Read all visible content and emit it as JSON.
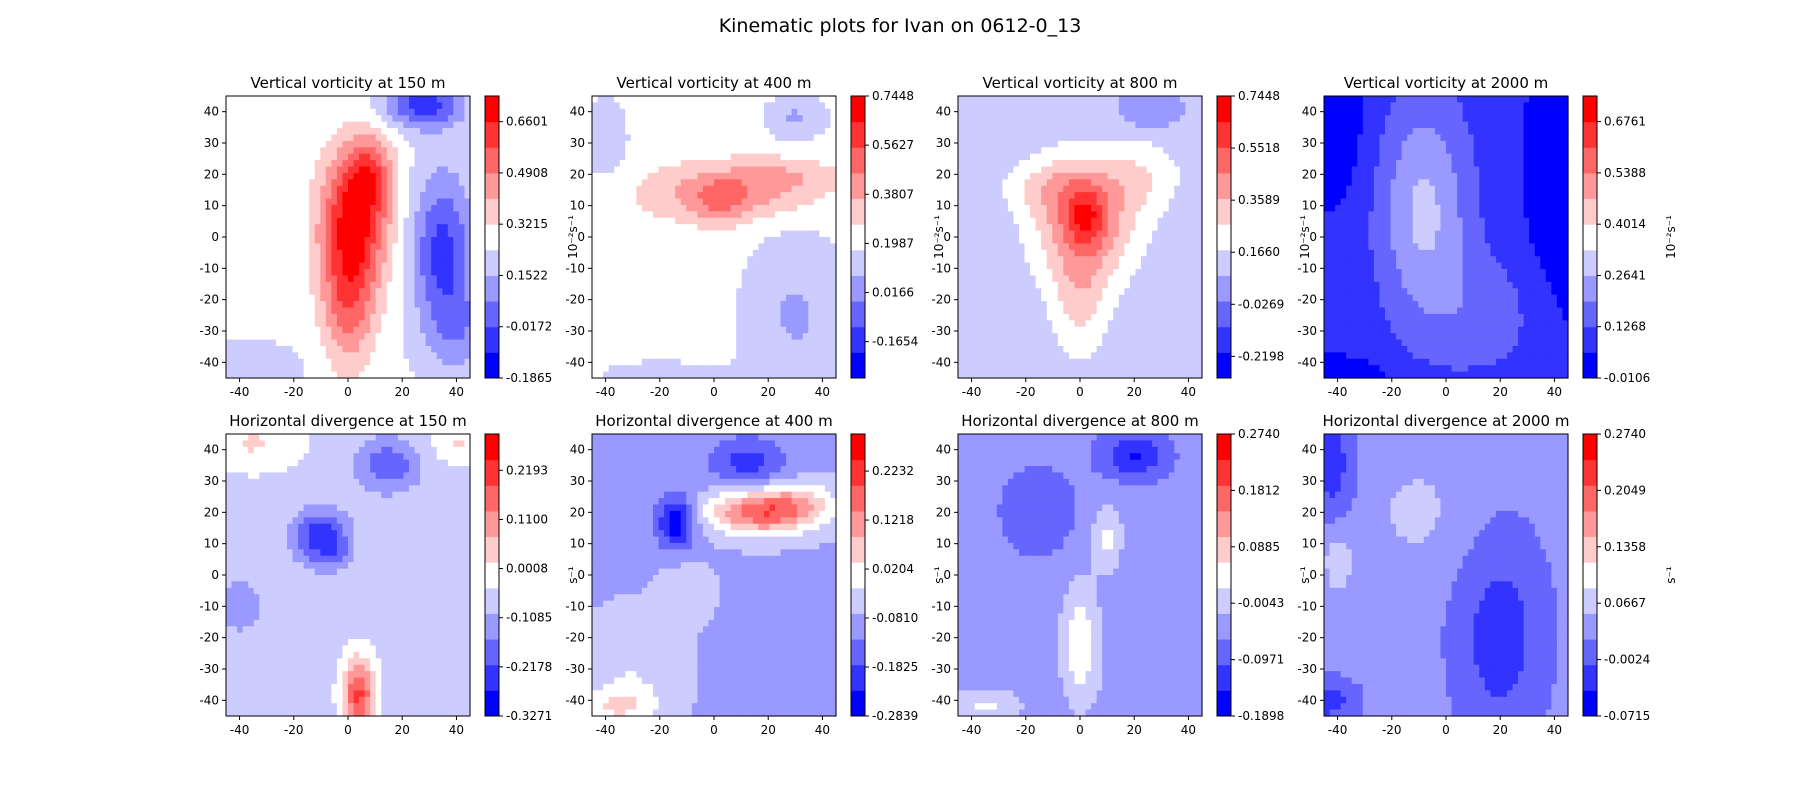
{
  "suptitle": "Kinematic plots for Ivan on 0612-0_13",
  "colors": {
    "blue_dark": "#0000ff",
    "blue_1": "#3333ff",
    "blue_2": "#6666ff",
    "blue_3": "#9999ff",
    "blue_4": "#ccccff",
    "white": "#ffffff",
    "red_4": "#ffcccc",
    "red_3": "#ff9999",
    "red_2": "#ff6666",
    "red_1": "#ff3333",
    "red_dark": "#ff0000"
  },
  "chart_data": [
    {
      "type": "heatmap",
      "row": 0,
      "col": 0,
      "title": "Vertical vorticity at 150 m",
      "xlim": [
        -45,
        45
      ],
      "ylim": [
        -45,
        45
      ],
      "xticks": [
        "-40",
        "-20",
        "0",
        "20",
        "40"
      ],
      "yticks": [
        "40",
        "30",
        "20",
        "10",
        "0",
        "-10",
        "-20",
        "-30",
        "-40"
      ],
      "colorbar": {
        "label": "10⁻²s⁻¹",
        "range": [
          -0.1865,
          0.7448
        ],
        "ticks": [
          -0.1865,
          -0.0172,
          0.1522,
          0.3215,
          0.4908,
          0.6601
        ],
        "tick_labels": [
          "-0.1865",
          "-0.0172",
          "0.1522",
          "0.3215",
          "0.4908",
          "0.6601"
        ]
      },
      "field": {
        "base": 0.25,
        "blobs": [
          {
            "x": 2,
            "y": 5,
            "sx": 9,
            "sy": 16,
            "a": 0.42
          },
          {
            "x": 0,
            "y": -22,
            "sx": 7,
            "sy": 15,
            "a": 0.24
          },
          {
            "x": 8,
            "y": 20,
            "sx": 6,
            "sy": 9,
            "a": 0.22
          },
          {
            "x": 28,
            "y": 42,
            "sx": 10,
            "sy": 5,
            "a": -0.32
          },
          {
            "x": 35,
            "y": -5,
            "sx": 8,
            "sy": 18,
            "a": -0.3
          },
          {
            "x": 42,
            "y": -30,
            "sx": 8,
            "sy": 10,
            "a": -0.12
          },
          {
            "x": -40,
            "y": -42,
            "sx": 14,
            "sy": 5,
            "a": -0.08
          }
        ]
      }
    },
    {
      "type": "heatmap",
      "row": 0,
      "col": 1,
      "title": "Vertical vorticity at 400 m",
      "xlim": [
        -45,
        45
      ],
      "ylim": [
        -45,
        45
      ],
      "xticks": [
        "-40",
        "-20",
        "0",
        "20",
        "40"
      ],
      "yticks": [
        "40",
        "30",
        "20",
        "10",
        "0",
        "-10",
        "-20",
        "-30",
        "-40"
      ],
      "colorbar": {
        "label": "10⁻²s⁻¹",
        "range": [
          -0.3,
          0.7448
        ],
        "ticks": [
          -0.1654,
          0.0166,
          0.1987,
          0.3807,
          0.5627,
          0.7448
        ],
        "tick_labels": [
          "-0.1654",
          "0.0166",
          "0.1987",
          "0.3807",
          "0.5627",
          "0.7448"
        ]
      },
      "field": {
        "base": 0.22,
        "blobs": [
          {
            "x": 5,
            "y": 14,
            "sx": 22,
            "sy": 6,
            "a": 0.22
          },
          {
            "x": 2,
            "y": 10,
            "sx": 6,
            "sy": 5,
            "a": 0.12
          },
          {
            "x": 25,
            "y": 20,
            "sx": 14,
            "sy": 4,
            "a": 0.1
          },
          {
            "x": 30,
            "y": -25,
            "sx": 14,
            "sy": 20,
            "a": -0.15
          },
          {
            "x": -40,
            "y": 30,
            "sx": 8,
            "sy": 14,
            "a": -0.08
          },
          {
            "x": 30,
            "y": 38,
            "sx": 8,
            "sy": 5,
            "a": -0.15
          },
          {
            "x": -20,
            "y": -44,
            "sx": 20,
            "sy": 4,
            "a": -0.08
          }
        ]
      }
    },
    {
      "type": "heatmap",
      "row": 0,
      "col": 2,
      "title": "Vertical vorticity at 800 m",
      "xlim": [
        -45,
        45
      ],
      "ylim": [
        -45,
        45
      ],
      "xticks": [
        "-40",
        "-20",
        "0",
        "20",
        "40"
      ],
      "yticks": [
        "40",
        "30",
        "20",
        "10",
        "0",
        "-10",
        "-20",
        "-30",
        "-40"
      ],
      "colorbar": {
        "label": "10⁻²s⁻¹",
        "range": [
          -0.3,
          0.7448
        ],
        "ticks": [
          -0.2198,
          -0.0269,
          0.166,
          0.3589,
          0.5518,
          0.7448
        ],
        "tick_labels": [
          "-0.2198",
          "-0.0269",
          "0.1660",
          "0.3589",
          "0.5518",
          "0.7448"
        ]
      },
      "field": {
        "base": 0.1,
        "blobs": [
          {
            "x": 2,
            "y": 6,
            "sx": 14,
            "sy": 14,
            "a": 0.35
          },
          {
            "x": 2,
            "y": 6,
            "sx": 5,
            "sy": 6,
            "a": 0.2
          },
          {
            "x": -10,
            "y": 16,
            "sx": 14,
            "sy": 6,
            "a": 0.12
          },
          {
            "x": 0,
            "y": -20,
            "sx": 8,
            "sy": 14,
            "a": 0.18
          },
          {
            "x": 25,
            "y": 20,
            "sx": 10,
            "sy": 8,
            "a": 0.12
          },
          {
            "x": 25,
            "y": 40,
            "sx": 8,
            "sy": 4,
            "a": -0.1
          }
        ]
      }
    },
    {
      "type": "heatmap",
      "row": 0,
      "col": 3,
      "title": "Vertical vorticity at 2000 m",
      "xlim": [
        -45,
        45
      ],
      "ylim": [
        -45,
        45
      ],
      "xticks": [
        "-40",
        "-20",
        "0",
        "20",
        "40"
      ],
      "yticks": [
        "40",
        "30",
        "20",
        "10",
        "0",
        "-10",
        "-20",
        "-30",
        "-40"
      ],
      "colorbar": {
        "label": "10⁻²s⁻¹",
        "range": [
          -0.0106,
          0.7448
        ],
        "ticks": [
          -0.0106,
          0.1268,
          0.2641,
          0.4014,
          0.5388,
          0.6761
        ],
        "tick_labels": [
          "-0.0106",
          "0.1268",
          "0.2641",
          "0.4014",
          "0.5388",
          "0.6761"
        ]
      },
      "field": {
        "base": 0.08,
        "blobs": [
          {
            "x": -8,
            "y": 8,
            "sx": 12,
            "sy": 26,
            "a": 0.2
          },
          {
            "x": 15,
            "y": -25,
            "sx": 14,
            "sy": 14,
            "a": 0.08
          },
          {
            "x": -45,
            "y": 35,
            "sx": 10,
            "sy": 16,
            "a": -0.1
          },
          {
            "x": 45,
            "y": 20,
            "sx": 10,
            "sy": 30,
            "a": -0.1
          },
          {
            "x": -40,
            "y": -44,
            "sx": 14,
            "sy": 4,
            "a": -0.08
          }
        ]
      }
    },
    {
      "type": "heatmap",
      "row": 1,
      "col": 0,
      "title": "Horizontal divergence at 150 m",
      "xlim": [
        -45,
        45
      ],
      "ylim": [
        -45,
        45
      ],
      "xticks": [
        "-40",
        "-20",
        "0",
        "20",
        "40"
      ],
      "yticks": [
        "40",
        "30",
        "20",
        "10",
        "0",
        "-10",
        "-20",
        "-30",
        "-40"
      ],
      "colorbar": {
        "label": "s⁻¹",
        "range": [
          -0.3271,
          0.3
        ],
        "ticks": [
          -0.3271,
          -0.2178,
          -0.1085,
          0.0008,
          0.11,
          0.2193
        ],
        "tick_labels": [
          "-0.3271",
          "-0.2178",
          "-0.1085",
          "0.0008",
          "0.1100",
          "0.2193"
        ]
      },
      "field": {
        "base": -0.06,
        "blobs": [
          {
            "x": -10,
            "y": 12,
            "sx": 7,
            "sy": 6,
            "a": -0.2
          },
          {
            "x": -4,
            "y": 6,
            "sx": 4,
            "sy": 3,
            "a": -0.06
          },
          {
            "x": 15,
            "y": 35,
            "sx": 8,
            "sy": 6,
            "a": -0.14
          },
          {
            "x": 4,
            "y": -38,
            "sx": 4,
            "sy": 8,
            "a": 0.26
          },
          {
            "x": -35,
            "y": 42,
            "sx": 12,
            "sy": 6,
            "a": 0.08
          },
          {
            "x": 40,
            "y": 42,
            "sx": 6,
            "sy": 4,
            "a": 0.08
          },
          {
            "x": -40,
            "y": -10,
            "sx": 8,
            "sy": 8,
            "a": -0.06
          }
        ]
      }
    },
    {
      "type": "heatmap",
      "row": 1,
      "col": 1,
      "title": "Horizontal divergence at 400 m",
      "xlim": [
        -45,
        45
      ],
      "ylim": [
        -45,
        45
      ],
      "xticks": [
        "-40",
        "-20",
        "0",
        "20",
        "40"
      ],
      "yticks": [
        "40",
        "30",
        "20",
        "10",
        "0",
        "-10",
        "-20",
        "-30",
        "-40"
      ],
      "colorbar": {
        "label": "s⁻¹",
        "range": [
          -0.2839,
          0.3
        ],
        "ticks": [
          -0.2839,
          -0.1825,
          -0.081,
          0.0204,
          0.1218,
          0.2232
        ],
        "tick_labels": [
          "-0.2839",
          "-0.1825",
          "-0.0810",
          "0.0204",
          "0.1218",
          "0.2232"
        ]
      },
      "field": {
        "base": -0.08,
        "blobs": [
          {
            "x": 18,
            "y": 20,
            "sx": 14,
            "sy": 5,
            "a": 0.26
          },
          {
            "x": 32,
            "y": 24,
            "sx": 10,
            "sy": 4,
            "a": 0.08
          },
          {
            "x": -14,
            "y": 17,
            "sx": 5,
            "sy": 6,
            "a": -0.2
          },
          {
            "x": 12,
            "y": 36,
            "sx": 10,
            "sy": 6,
            "a": -0.12
          },
          {
            "x": -30,
            "y": -30,
            "sx": 12,
            "sy": 12,
            "a": 0.06
          },
          {
            "x": -10,
            "y": -5,
            "sx": 6,
            "sy": 6,
            "a": 0.06
          },
          {
            "x": -35,
            "y": -42,
            "sx": 10,
            "sy": 4,
            "a": 0.1
          }
        ]
      }
    },
    {
      "type": "heatmap",
      "row": 1,
      "col": 2,
      "title": "Horizontal divergence at 800 m",
      "xlim": [
        -45,
        45
      ],
      "ylim": [
        -45,
        45
      ],
      "xticks": [
        "-40",
        "-20",
        "0",
        "20",
        "40"
      ],
      "yticks": [
        "40",
        "30",
        "20",
        "10",
        "0",
        "-10",
        "-20",
        "-30",
        "-40"
      ],
      "colorbar": {
        "label": "s⁻¹",
        "range": [
          -0.1898,
          0.274
        ],
        "ticks": [
          -0.1898,
          -0.0971,
          -0.0043,
          0.0885,
          0.1812,
          0.274
        ],
        "tick_labels": [
          "-0.1898",
          "-0.0971",
          "-0.0043",
          "0.0885",
          "0.1812",
          "0.2740"
        ]
      },
      "field": {
        "base": -0.05,
        "blobs": [
          {
            "x": 0,
            "y": -22,
            "sx": 5,
            "sy": 14,
            "a": 0.1
          },
          {
            "x": 10,
            "y": 12,
            "sx": 4,
            "sy": 8,
            "a": 0.08
          },
          {
            "x": 20,
            "y": 38,
            "sx": 8,
            "sy": 5,
            "a": -0.1
          },
          {
            "x": -15,
            "y": 20,
            "sx": 10,
            "sy": 10,
            "a": -0.04
          },
          {
            "x": 25,
            "y": -30,
            "sx": 14,
            "sy": 12,
            "a": 0.02
          },
          {
            "x": -35,
            "y": -42,
            "sx": 10,
            "sy": 4,
            "a": 0.08
          }
        ]
      }
    },
    {
      "type": "heatmap",
      "row": 1,
      "col": 3,
      "title": "Horizontal divergence at 2000 m",
      "xlim": [
        -45,
        45
      ],
      "ylim": [
        -45,
        45
      ],
      "xticks": [
        "-40",
        "-20",
        "0",
        "20",
        "40"
      ],
      "yticks": [
        "40",
        "30",
        "20",
        "10",
        "0",
        "-10",
        "-20",
        "-30",
        "-40"
      ],
      "colorbar": {
        "label": "s⁻¹",
        "range": [
          -0.0715,
          0.274
        ],
        "ticks": [
          -0.0715,
          -0.0024,
          0.0667,
          0.1358,
          0.2049,
          0.274
        ],
        "tick_labels": [
          "-0.0715",
          "-0.0024",
          "0.0667",
          "0.1358",
          "0.2049",
          "0.2740"
        ]
      },
      "field": {
        "base": 0.035,
        "blobs": [
          {
            "x": 20,
            "y": -20,
            "sx": 12,
            "sy": 24,
            "a": -0.06
          },
          {
            "x": -42,
            "y": 35,
            "sx": 6,
            "sy": 14,
            "a": -0.06
          },
          {
            "x": -44,
            "y": -40,
            "sx": 8,
            "sy": 5,
            "a": -0.06
          },
          {
            "x": -40,
            "y": 5,
            "sx": 4,
            "sy": 8,
            "a": 0.04
          },
          {
            "x": -10,
            "y": 20,
            "sx": 14,
            "sy": 14,
            "a": 0.025
          }
        ]
      }
    }
  ]
}
